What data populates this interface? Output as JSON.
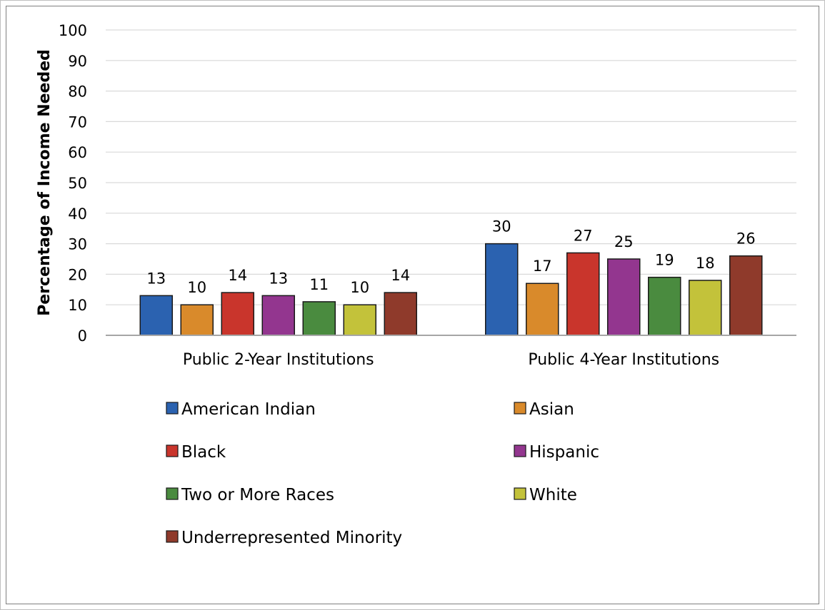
{
  "chart_data": {
    "type": "bar",
    "title": "",
    "xlabel": "",
    "ylabel": "Percentage of Income Needed",
    "ylim": [
      0,
      100
    ],
    "yticks": [
      0,
      10,
      20,
      30,
      40,
      50,
      60,
      70,
      80,
      90,
      100
    ],
    "grid": true,
    "legend_position": "bottom",
    "categories": [
      "Public 2-Year Institutions",
      "Public 4-Year Institutions"
    ],
    "series": [
      {
        "name": "American Indian",
        "color": "#2b62b0",
        "values": [
          13,
          30
        ],
        "labels": [
          "13",
          "30"
        ]
      },
      {
        "name": "Asian",
        "color": "#d98a2b",
        "values": [
          10,
          17
        ],
        "labels": [
          "10",
          "17"
        ]
      },
      {
        "name": "Black",
        "color": "#c9352c",
        "values": [
          14,
          27
        ],
        "labels": [
          "14",
          "27"
        ]
      },
      {
        "name": "Hispanic",
        "color": "#93368f",
        "values": [
          13,
          25
        ],
        "labels": [
          "13",
          "25"
        ]
      },
      {
        "name": "Two or More Races",
        "color": "#4a8b3f",
        "values": [
          11,
          19
        ],
        "labels": [
          "11",
          "19"
        ]
      },
      {
        "name": "White",
        "color": "#c3c23a",
        "values": [
          10,
          18
        ],
        "labels": [
          "10",
          "18"
        ]
      },
      {
        "name": "Underrepresented Minority",
        "color": "#8f3a2b",
        "values": [
          14,
          26
        ],
        "labels": [
          "14",
          "26"
        ]
      }
    ]
  }
}
